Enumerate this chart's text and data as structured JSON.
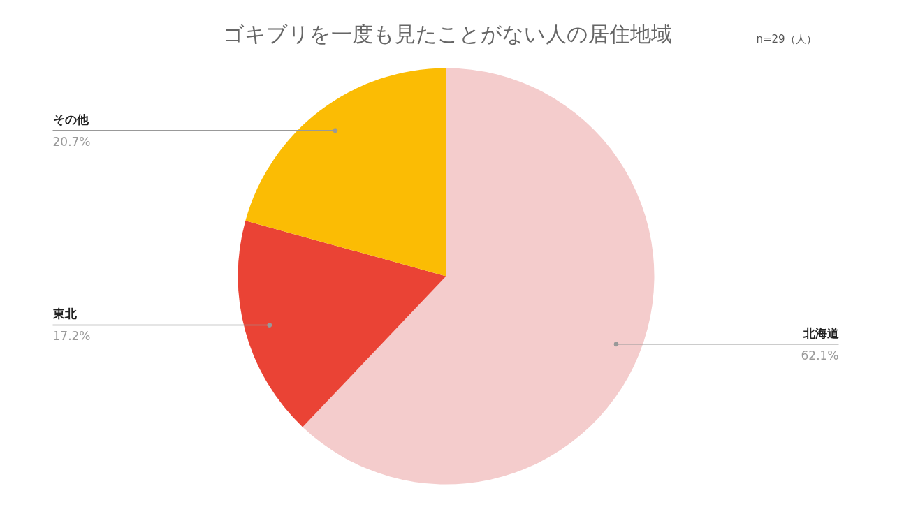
{
  "chart_data": {
    "type": "pie",
    "title": "ゴキブリを一度も見たことがない人の居住地域",
    "annotations": [
      "n=29（人）"
    ],
    "categories": [
      "北海道",
      "東北",
      "その他"
    ],
    "values": [
      62.1,
      17.2,
      20.7
    ],
    "colors": [
      "#f4cccc",
      "#ea4335",
      "#fbbc04"
    ],
    "value_labels": [
      "62.1%",
      "17.2%",
      "20.7%"
    ]
  }
}
